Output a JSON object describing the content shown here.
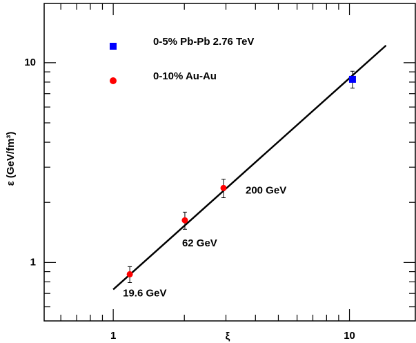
{
  "chart_data": {
    "type": "scatter",
    "xlabel": "ξ",
    "ylabel": "ε (GeV/fm³)",
    "xscale": "log",
    "yscale": "log",
    "xlim": [
      0.51,
      19
    ],
    "ylim": [
      0.51,
      19.8
    ],
    "xticks": [
      1,
      10
    ],
    "yticks": [
      1,
      10
    ],
    "xminorticks": [
      0.6,
      0.7,
      0.8,
      0.9,
      2,
      3,
      4,
      5,
      6,
      7,
      8,
      9
    ],
    "yminorticks": [
      0.6,
      0.7,
      0.8,
      0.9,
      2,
      3,
      4,
      5,
      6,
      7,
      8,
      9
    ],
    "series": [
      {
        "name": "0-5% Pb-Pb 2.76 TeV",
        "color": "#0000ff",
        "marker": "square",
        "x": [
          10.3
        ],
        "values": [
          8.26
        ],
        "errors": [
          0.8
        ]
      },
      {
        "name": "0-10% Au-Au",
        "color": "#ff0000",
        "marker": "circle",
        "x": [
          1.175,
          2.01,
          2.93
        ],
        "values": [
          0.873,
          1.626,
          2.36
        ],
        "errors": [
          0.08,
          0.16,
          0.25
        ],
        "point_labels": [
          "19.6 GeV",
          "62 GeV",
          "200 GeV"
        ]
      }
    ],
    "fit": {
      "color": "#000000",
      "x": [
        1,
        14.28
      ],
      "values": [
        0.733,
        12.2
      ]
    }
  }
}
